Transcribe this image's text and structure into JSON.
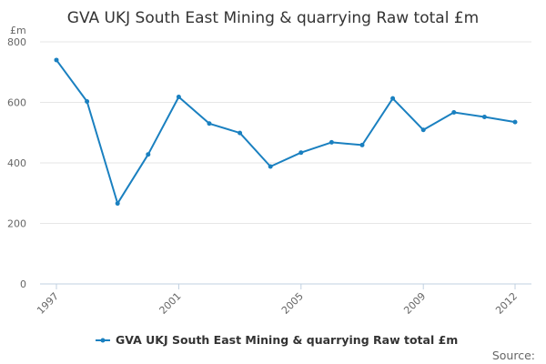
{
  "chart_data": {
    "type": "line",
    "title": "GVA UKJ South East Mining & quarrying Raw total £m",
    "yunit": "£m",
    "ylim": [
      0,
      800
    ],
    "yticks": [
      0,
      200,
      400,
      600,
      800
    ],
    "x": [
      1997,
      1998,
      1999,
      2000,
      2001,
      2002,
      2003,
      2004,
      2005,
      2006,
      2007,
      2008,
      2009,
      2010,
      2011,
      2012
    ],
    "xticks": [
      1997,
      2001,
      2005,
      2009,
      2012
    ],
    "grid": true,
    "legend_position": "bottom",
    "series": [
      {
        "name": "GVA UKJ South East Mining & quarrying Raw total £m",
        "color": "#1a80c0",
        "values": [
          740,
          603,
          266,
          428,
          618,
          530,
          499,
          388,
          434,
          468,
          459,
          613,
          509,
          567,
          552,
          535
        ]
      }
    ],
    "source_label": "Source:"
  }
}
